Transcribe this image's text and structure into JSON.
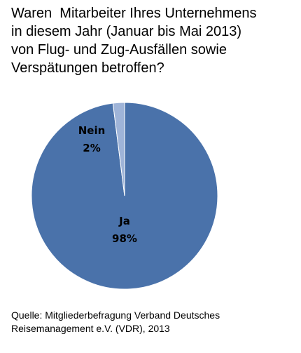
{
  "title_lines": [
    "Waren  Mitarbeiter Ihres Unternehmens",
    "in diesem Jahr (Januar bis Mai 2013)",
    "von Flug- und Zug-Ausfällen sowie",
    "Verspätungen betroffen?"
  ],
  "source_lines": [
    "Quelle: Mitgliederbefragung Verband Deutsches",
    "Reisemanagement e.V. (VDR), 2013"
  ],
  "chart_data": {
    "type": "pie",
    "title": "Waren  Mitarbeiter Ihres Unternehmens in diesem Jahr (Januar bis Mai 2013) von Flug- und Zug-Ausfällen sowie Verspätungen betroffen?",
    "slices": [
      {
        "label": "Ja",
        "value": 98,
        "value_label": "98%",
        "color": "#4a72aa"
      },
      {
        "label": "Nein",
        "value": 2,
        "value_label": "2%",
        "color": "#9fb4d8"
      }
    ],
    "legend": "none"
  }
}
